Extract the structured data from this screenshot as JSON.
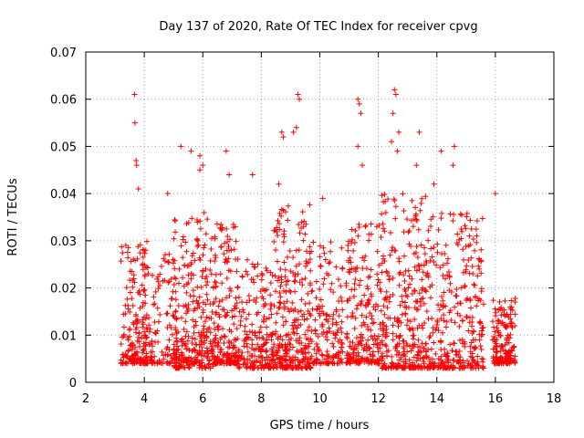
{
  "chart_data": {
    "type": "scatter",
    "title": "Day 137 of 2020, Rate Of TEC Index for receiver cpvg",
    "xlabel": "GPS time / hours",
    "ylabel": "ROTI / TECUs",
    "xlim": [
      2,
      18
    ],
    "ylim": [
      0,
      0.07
    ],
    "xticks": [
      2,
      4,
      6,
      8,
      10,
      12,
      14,
      16,
      18
    ],
    "xtick_labels": [
      "2",
      "4",
      "6",
      "8",
      "10",
      "12",
      "14",
      "16",
      "18"
    ],
    "yticks": [
      0,
      0.01,
      0.02,
      0.03,
      0.04,
      0.05,
      0.06,
      0.07
    ],
    "ytick_labels": [
      "0",
      "0.01",
      "0.02",
      "0.03",
      "0.04",
      "0.05",
      "0.06",
      "0.07"
    ],
    "grid": true,
    "marker": "+",
    "color": "#ff0000",
    "x_range_of_data": [
      3.2,
      16.7
    ],
    "series": [
      {
        "name": "ROTI",
        "points": [
          [
            3.67,
            0.061
          ],
          [
            3.68,
            0.055
          ],
          [
            3.72,
            0.047
          ],
          [
            3.74,
            0.046
          ],
          [
            3.8,
            0.041
          ],
          [
            5.25,
            0.05
          ],
          [
            5.6,
            0.049
          ],
          [
            5.9,
            0.048
          ],
          [
            6.0,
            0.046
          ],
          [
            6.8,
            0.049
          ],
          [
            6.9,
            0.044
          ],
          [
            8.7,
            0.053
          ],
          [
            8.75,
            0.052
          ],
          [
            9.25,
            0.061
          ],
          [
            9.3,
            0.06
          ],
          [
            9.2,
            0.054
          ],
          [
            9.1,
            0.053
          ],
          [
            11.3,
            0.06
          ],
          [
            11.35,
            0.059
          ],
          [
            11.4,
            0.057
          ],
          [
            11.3,
            0.05
          ],
          [
            11.45,
            0.046
          ],
          [
            12.55,
            0.062
          ],
          [
            12.6,
            0.061
          ],
          [
            12.5,
            0.057
          ],
          [
            12.7,
            0.053
          ],
          [
            12.45,
            0.051
          ],
          [
            12.65,
            0.049
          ],
          [
            13.4,
            0.053
          ],
          [
            13.3,
            0.046
          ],
          [
            14.15,
            0.049
          ],
          [
            14.6,
            0.05
          ],
          [
            14.55,
            0.046
          ],
          [
            16.0,
            0.04
          ],
          [
            10.1,
            0.039
          ],
          [
            4.8,
            0.04
          ],
          [
            7.7,
            0.044
          ],
          [
            8.6,
            0.042
          ],
          [
            5.9,
            0.045
          ],
          [
            13.9,
            0.042
          ]
        ]
      }
    ],
    "clusters": [
      {
        "x0": 3.2,
        "x1": 4.1,
        "y_low": 0.004,
        "y_high": 0.03,
        "n": 170
      },
      {
        "x0": 3.9,
        "x1": 5.1,
        "y_low": 0.004,
        "y_high": 0.028,
        "n": 150
      },
      {
        "x0": 5.0,
        "x1": 6.4,
        "y_low": 0.003,
        "y_high": 0.036,
        "n": 300
      },
      {
        "x0": 6.4,
        "x1": 7.2,
        "y_low": 0.004,
        "y_high": 0.034,
        "n": 190
      },
      {
        "x0": 7.2,
        "x1": 8.4,
        "y_low": 0.003,
        "y_high": 0.026,
        "n": 200
      },
      {
        "x0": 8.4,
        "x1": 9.7,
        "y_low": 0.003,
        "y_high": 0.038,
        "n": 300
      },
      {
        "x0": 9.7,
        "x1": 10.8,
        "y_low": 0.004,
        "y_high": 0.03,
        "n": 160
      },
      {
        "x0": 10.9,
        "x1": 12.1,
        "y_low": 0.004,
        "y_high": 0.034,
        "n": 220
      },
      {
        "x0": 12.1,
        "x1": 13.7,
        "y_low": 0.003,
        "y_high": 0.04,
        "n": 330
      },
      {
        "x0": 13.7,
        "x1": 15.6,
        "y_low": 0.003,
        "y_high": 0.036,
        "n": 320
      },
      {
        "x0": 15.9,
        "x1": 16.7,
        "y_low": 0.004,
        "y_high": 0.018,
        "n": 170
      }
    ]
  }
}
